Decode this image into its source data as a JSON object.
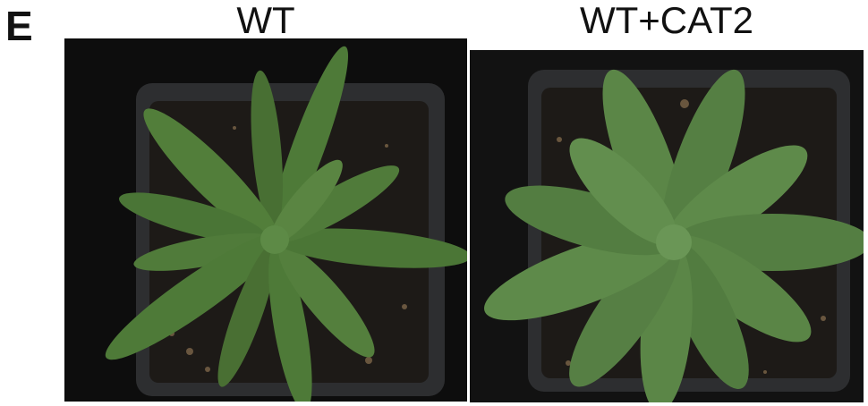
{
  "figure": {
    "panel_letter": "E",
    "panels": [
      {
        "label": "WT"
      },
      {
        "label": "WT+CAT2"
      }
    ]
  },
  "colors": {
    "background": "#0e0e0e",
    "pot": "#2e2f31",
    "soil": "#1d1a17",
    "leaf": "#4e7a38",
    "leaf_dark": "#3a5f28",
    "leaf_light": "#6f9b56"
  }
}
